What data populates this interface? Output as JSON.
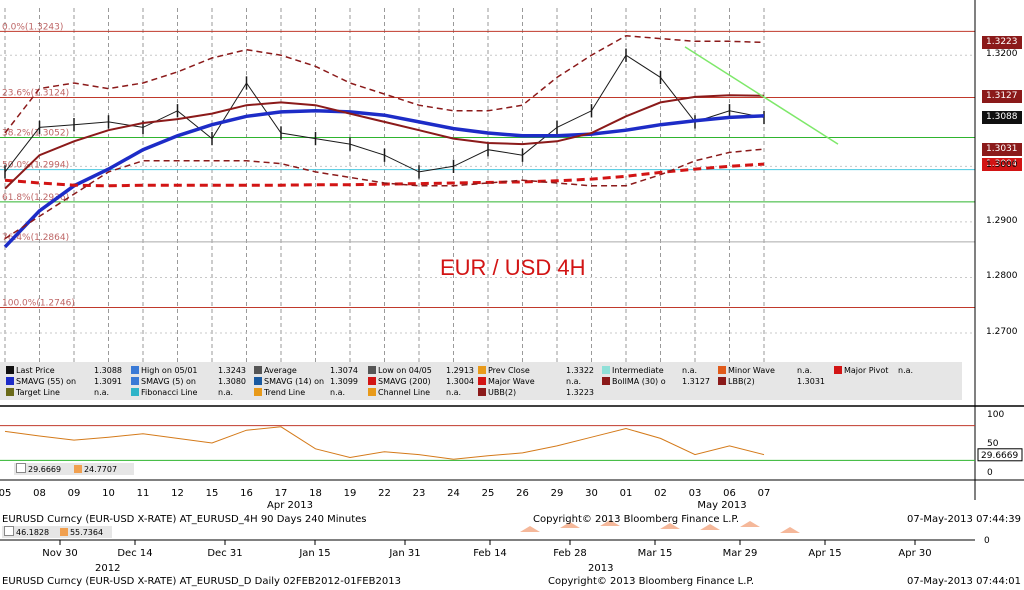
{
  "colors": {
    "bg": "#ffffff",
    "grid": "#9a9a9a",
    "fib_red": "#c0392b",
    "fib_green": "#2fb42f",
    "fib_cyan": "#49c8e0",
    "sma55": "#1d2cc7",
    "sma5": "#3a7ad6",
    "sma14": "#1a5aa0",
    "sma200": "#d21414",
    "bollma": "#8b1a1a",
    "bb": "#8b1a1a",
    "trend": "#7ee86a",
    "title": "#d21414"
  },
  "title": "EUR / USD 4H",
  "fib_labels": [
    {
      "text": "0.0%(1.3243)",
      "value": 1.3243
    },
    {
      "text": "23.6%(1.3124)",
      "value": 1.3124
    },
    {
      "text": "38.2%(1.3052)",
      "value": 1.3052
    },
    {
      "text": "50.0%(1.2994)",
      "value": 1.2994
    },
    {
      "text": "61.8%(1.2936)",
      "value": 1.2936
    },
    {
      "text": "76.4%(1.2864)",
      "value": 1.2864
    },
    {
      "text": "100.0%(1.2746)",
      "value": 1.2746
    }
  ],
  "price_tags": [
    {
      "text": "1.3223",
      "value": 1.3223,
      "color": "#8b1a1a"
    },
    {
      "text": "1.3127",
      "value": 1.3127,
      "color": "#8b1a1a"
    },
    {
      "text": "1.3088",
      "value": 1.3088,
      "color": "#101010"
    },
    {
      "text": "1.3031",
      "value": 1.3031,
      "color": "#8b1a1a"
    },
    {
      "text": "1.3004",
      "value": 1.3004,
      "color": "#d21414"
    }
  ],
  "price_axis_labels": [
    "1.3200",
    "1.3000",
    "1.2900",
    "1.2800",
    "1.2700"
  ],
  "legend": [
    {
      "sw": "#101010",
      "label": "Last Price",
      "val": "1.3088"
    },
    {
      "sw": "#1d2cc7",
      "label": "SMAVG (55) on",
      "val": "1.3091"
    },
    {
      "sw": "#6b6b1a",
      "label": "Target Line",
      "val": "n.a."
    },
    {
      "sw": "#3a7ad6",
      "label": "High on 05/01",
      "val": "1.3243"
    },
    {
      "sw": "#3a7ad6",
      "label": "SMAVG (5) on",
      "val": "1.3080"
    },
    {
      "sw": "#2fb4c8",
      "label": "Fibonacci Line",
      "val": "n.a."
    },
    {
      "sw": "#555555",
      "label": "Average",
      "val": "1.3074"
    },
    {
      "sw": "#1a5aa0",
      "label": "SMAVG (14) on",
      "val": "1.3099"
    },
    {
      "sw": "#e89a1a",
      "label": "Trend Line",
      "val": "n.a."
    },
    {
      "sw": "#555555",
      "label": "Low on 04/05",
      "val": "1.2913"
    },
    {
      "sw": "#d21414",
      "label": "SMAVG (200)",
      "val": "1.3004"
    },
    {
      "sw": "#e89a1a",
      "label": "Channel Line",
      "val": "n.a."
    },
    {
      "sw": "#e89a1a",
      "label": "Prev Close",
      "val": "1.3322"
    },
    {
      "sw": "#d21414",
      "label": "Major Wave",
      "val": "n.a."
    },
    {
      "sw": "#8b1a1a",
      "label": "UBB(2)",
      "val": "1.3223"
    },
    {
      "sw": "#8fe0d8",
      "label": "Intermediate",
      "val": "n.a."
    },
    {
      "sw": "#8b1a1a",
      "label": "BollMA (30) o",
      "val": "1.3127"
    },
    {
      "sw": "#e05a1a",
      "label": "Minor Wave",
      "val": "n.a."
    },
    {
      "sw": "#8b1a1a",
      "label": "LBB(2)",
      "val": "1.3031"
    },
    {
      "sw": "#d21414",
      "label": "Major Pivot",
      "val": "n.a."
    }
  ],
  "indicator": {
    "values": [
      "29.6669",
      "24.7707"
    ],
    "axis_labels": [
      "100",
      "50",
      "0"
    ],
    "last_tag": "29.6669"
  },
  "x_axis_days": [
    "05",
    "08",
    "09",
    "10",
    "11",
    "12",
    "15",
    "16",
    "17",
    "18",
    "19",
    "22",
    "23",
    "24",
    "25",
    "26",
    "29",
    "30",
    "01",
    "02",
    "03",
    "06",
    "07"
  ],
  "x_axis_months": [
    "Apr 2013",
    "May 2013"
  ],
  "footer1": {
    "left": "EURUSD Curncy (EUR-USD X-RATE) AT_EURUSD_4H 90 Days 240 Minutes",
    "center": "Copyright© 2013 Bloomberg Finance L.P.",
    "right": "07-May-2013 07:44:39"
  },
  "mini": {
    "values": [
      "46.1828",
      "55.7364"
    ],
    "axis_label": "0",
    "dates": [
      "Nov 30",
      "Dec 14",
      "Dec 31",
      "Jan 15",
      "Jan 31",
      "Feb 14",
      "Feb 28",
      "Mar 15",
      "Mar 29",
      "Apr 15",
      "Apr 30"
    ],
    "years": [
      "2012",
      "2013"
    ]
  },
  "footer2": {
    "left": "EURUSD Curncy (EUR-USD X-RATE) AT_EURUSD_D  Daily 02FEB2012-01FEB2013",
    "center": "Copyright© 2013 Bloomberg Finance L.P.",
    "right": "07-May-2013 07:44:01"
  },
  "chart_data": {
    "type": "line",
    "title": "EUR / USD 4H",
    "ylim": [
      1.2655,
      1.3285
    ],
    "x": [
      "05",
      "08",
      "09",
      "10",
      "11",
      "12",
      "15",
      "16",
      "17",
      "18",
      "19",
      "22",
      "23",
      "24",
      "25",
      "26",
      "29",
      "30",
      "01",
      "02",
      "03",
      "06",
      "07"
    ],
    "series": [
      {
        "name": "Last Price",
        "values": [
          1.299,
          1.307,
          1.3075,
          1.308,
          1.307,
          1.31,
          1.305,
          1.315,
          1.306,
          1.305,
          1.304,
          1.302,
          1.299,
          1.3,
          1.303,
          1.302,
          1.307,
          1.31,
          1.32,
          1.316,
          1.308,
          1.31,
          1.3088
        ]
      },
      {
        "name": "SMAVG (55)",
        "values": [
          1.2855,
          1.292,
          1.2965,
          1.2995,
          1.303,
          1.3055,
          1.3075,
          1.309,
          1.3098,
          1.31,
          1.3098,
          1.3092,
          1.308,
          1.3068,
          1.306,
          1.3055,
          1.3055,
          1.3058,
          1.3065,
          1.3075,
          1.3082,
          1.3088,
          1.3091
        ]
      },
      {
        "name": "SMAVG (200)",
        "values": [
          1.2975,
          1.297,
          1.2966,
          1.2965,
          1.2966,
          1.2966,
          1.2966,
          1.2966,
          1.2966,
          1.2967,
          1.2967,
          1.2968,
          1.2969,
          1.297,
          1.2971,
          1.2972,
          1.2974,
          1.2977,
          1.2982,
          1.2989,
          1.2995,
          1.3,
          1.3004
        ]
      },
      {
        "name": "BollMA (30)",
        "values": [
          1.296,
          1.302,
          1.3045,
          1.3065,
          1.3078,
          1.3085,
          1.3095,
          1.311,
          1.3115,
          1.311,
          1.3095,
          1.308,
          1.3065,
          1.305,
          1.3042,
          1.304,
          1.3045,
          1.306,
          1.309,
          1.3115,
          1.3125,
          1.3128,
          1.3127
        ]
      },
      {
        "name": "UBB(2)",
        "values": [
          1.306,
          1.314,
          1.315,
          1.314,
          1.315,
          1.317,
          1.3195,
          1.321,
          1.32,
          1.318,
          1.315,
          1.313,
          1.311,
          1.31,
          1.31,
          1.311,
          1.316,
          1.32,
          1.3235,
          1.323,
          1.3225,
          1.3225,
          1.3223
        ]
      },
      {
        "name": "LBB(2)",
        "values": [
          1.287,
          1.291,
          1.295,
          1.299,
          1.301,
          1.301,
          1.301,
          1.301,
          1.3005,
          1.299,
          1.298,
          1.297,
          1.2965,
          1.2965,
          1.297,
          1.2975,
          1.297,
          1.2965,
          1.2965,
          1.2985,
          1.301,
          1.3025,
          1.3031
        ]
      }
    ],
    "horizontal_lines": [
      1.3243,
      1.3124,
      1.3052,
      1.2994,
      1.2936,
      1.2864,
      1.2746
    ],
    "grid": true
  }
}
